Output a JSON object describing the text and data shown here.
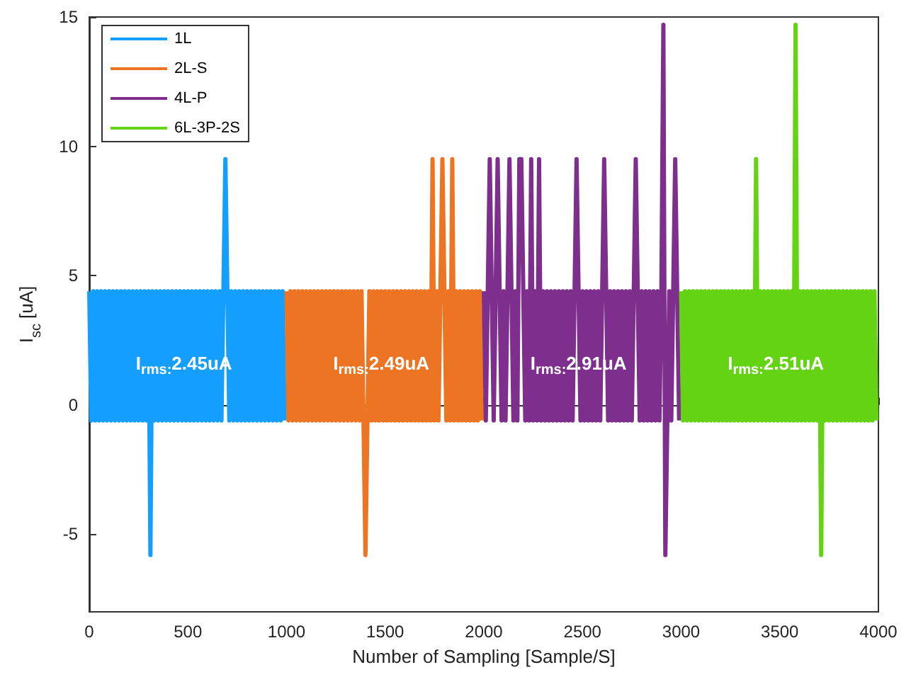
{
  "chart_data": {
    "type": "line",
    "xlabel": "Number of Sampling [Sample/S]",
    "ylabel": "I$_{sc}$ [uA]",
    "xlim": [
      0,
      4000
    ],
    "xticks": [
      0,
      500,
      1000,
      1500,
      2000,
      2500,
      3000,
      3500,
      4000
    ],
    "ylim": [
      -8,
      15
    ],
    "yticks": [
      -5,
      0,
      5,
      10,
      15
    ],
    "legend": "top left",
    "marker": "none",
    "line_style": "solid",
    "annotations": [
      {
        "text": "I$_{rms:}$2.45uA",
        "x": 480,
        "y": 1.6
      },
      {
        "text": "I$_{rms:}$2.49uA",
        "x": 1480,
        "y": 1.6
      },
      {
        "text": "I$_{rms:}$2.91uA",
        "x": 2480,
        "y": 1.6
      },
      {
        "text": "I$_{rms:}$2.51uA",
        "x": 3480,
        "y": 1.6
      }
    ],
    "series": [
      {
        "name": "1L",
        "color": "#149ffe",
        "x": [
          0,
          10,
          20,
          30,
          40,
          50,
          60,
          70,
          80,
          90,
          100,
          110,
          120,
          130,
          140,
          150,
          160,
          170,
          180,
          190,
          200,
          210,
          220,
          230,
          240,
          250,
          260,
          270,
          280,
          290,
          300,
          310,
          320,
          330,
          340,
          350,
          360,
          370,
          380,
          390,
          400,
          410,
          420,
          430,
          440,
          450,
          460,
          470,
          480,
          490,
          500,
          510,
          520,
          530,
          540,
          550,
          560,
          570,
          580,
          590,
          600,
          610,
          620,
          630,
          640,
          650,
          660,
          670,
          680,
          690,
          700,
          710,
          720,
          730,
          740,
          750,
          760,
          770,
          780,
          790,
          800,
          810,
          820,
          830,
          840,
          850,
          860,
          870,
          880,
          890,
          900,
          910,
          920,
          930,
          940,
          950,
          960,
          970,
          980,
          990
        ],
        "values": [
          4.4,
          -0.6,
          4.4,
          -0.6,
          4.4,
          -0.6,
          4.4,
          -0.6,
          4.4,
          -0.6,
          4.4,
          -0.6,
          4.4,
          -0.6,
          4.4,
          -0.6,
          4.4,
          -0.6,
          4.4,
          -0.6,
          4.4,
          -0.6,
          4.4,
          -0.6,
          4.4,
          -0.6,
          4.4,
          -0.6,
          4.4,
          -0.6,
          4.4,
          -5.8,
          4.4,
          -0.6,
          4.4,
          -0.6,
          4.4,
          -0.6,
          4.4,
          -0.6,
          4.4,
          -0.6,
          4.4,
          -0.6,
          4.4,
          -0.6,
          4.4,
          -0.6,
          4.4,
          -0.6,
          4.4,
          -0.6,
          4.4,
          -0.6,
          4.4,
          -0.6,
          4.4,
          -0.6,
          4.4,
          -0.6,
          4.4,
          -0.6,
          4.4,
          -0.6,
          4.4,
          -0.6,
          4.4,
          -0.6,
          4.4,
          9.5,
          4.4,
          -0.6,
          4.4,
          -0.6,
          4.4,
          -0.6,
          4.4,
          -0.6,
          4.4,
          -0.6,
          4.4,
          -0.6,
          4.4,
          -0.6,
          4.4,
          -0.6,
          4.4,
          -0.6,
          4.4,
          -0.6,
          4.4,
          -0.6,
          4.4,
          -0.6,
          4.4,
          -0.6,
          4.4,
          -0.6,
          4.4,
          -0.6
        ]
      },
      {
        "name": "2L-S",
        "color": "#ec7422",
        "x": [
          1000,
          1010,
          1020,
          1030,
          1040,
          1050,
          1060,
          1070,
          1080,
          1090,
          1100,
          1110,
          1120,
          1130,
          1140,
          1150,
          1160,
          1170,
          1180,
          1190,
          1200,
          1210,
          1220,
          1230,
          1240,
          1250,
          1260,
          1270,
          1280,
          1290,
          1300,
          1310,
          1320,
          1330,
          1340,
          1350,
          1360,
          1370,
          1380,
          1390,
          1400,
          1410,
          1420,
          1430,
          1440,
          1450,
          1460,
          1470,
          1480,
          1490,
          1500,
          1510,
          1520,
          1530,
          1540,
          1550,
          1560,
          1570,
          1580,
          1590,
          1600,
          1610,
          1620,
          1630,
          1640,
          1650,
          1660,
          1670,
          1680,
          1690,
          1700,
          1710,
          1720,
          1730,
          1740,
          1750,
          1760,
          1770,
          1780,
          1790,
          1800,
          1810,
          1820,
          1830,
          1840,
          1850,
          1860,
          1870,
          1880,
          1890,
          1900,
          1910,
          1920,
          1930,
          1940,
          1950,
          1960,
          1970,
          1980,
          1990
        ],
        "values": [
          4.4,
          -0.6,
          4.4,
          -0.6,
          4.4,
          -0.6,
          4.4,
          -0.6,
          4.4,
          -0.6,
          4.4,
          -0.6,
          4.4,
          -0.6,
          4.4,
          -0.6,
          4.4,
          -0.6,
          4.4,
          -0.6,
          4.4,
          -0.6,
          4.4,
          -0.6,
          4.4,
          -0.6,
          4.4,
          -0.6,
          4.4,
          -0.6,
          4.4,
          -0.6,
          4.4,
          -0.6,
          4.4,
          -0.6,
          4.4,
          -0.6,
          4.4,
          -0.6,
          -5.8,
          -0.6,
          4.4,
          -0.6,
          4.4,
          -0.6,
          4.4,
          -0.6,
          4.4,
          -0.6,
          4.4,
          -0.6,
          4.4,
          -0.6,
          4.4,
          -0.6,
          4.4,
          -0.6,
          4.4,
          -0.6,
          4.4,
          -0.6,
          4.4,
          -0.6,
          4.4,
          -0.6,
          4.4,
          -0.6,
          4.4,
          -0.6,
          4.4,
          -0.6,
          4.4,
          -0.6,
          9.5,
          -0.6,
          4.4,
          -0.6,
          4.4,
          9.5,
          4.4,
          -0.6,
          4.4,
          -0.6,
          9.5,
          -0.6,
          4.4,
          -0.6,
          4.4,
          -0.6,
          4.4,
          -0.6,
          4.4,
          -0.6,
          4.4,
          -0.6,
          4.4,
          -0.6,
          4.4,
          -0.6
        ]
      },
      {
        "name": "4L-P",
        "color": "#7e2f8e",
        "x": [
          2000,
          2010,
          2020,
          2030,
          2040,
          2050,
          2060,
          2070,
          2080,
          2090,
          2100,
          2110,
          2120,
          2130,
          2140,
          2150,
          2160,
          2170,
          2180,
          2190,
          2200,
          2210,
          2220,
          2230,
          2240,
          2250,
          2260,
          2270,
          2280,
          2290,
          2300,
          2310,
          2320,
          2330,
          2340,
          2350,
          2360,
          2370,
          2380,
          2390,
          2400,
          2410,
          2420,
          2430,
          2440,
          2450,
          2460,
          2470,
          2480,
          2490,
          2500,
          2510,
          2520,
          2530,
          2540,
          2550,
          2560,
          2570,
          2580,
          2590,
          2600,
          2610,
          2620,
          2630,
          2640,
          2650,
          2660,
          2670,
          2680,
          2690,
          2700,
          2710,
          2720,
          2730,
          2740,
          2750,
          2760,
          2770,
          2780,
          2790,
          2800,
          2810,
          2820,
          2830,
          2840,
          2850,
          2860,
          2870,
          2880,
          2890,
          2900,
          2910,
          2920,
          2930,
          2940,
          2950,
          2960,
          2970,
          2980,
          2990
        ],
        "values": [
          4.4,
          -0.6,
          4.4,
          9.5,
          4.4,
          -0.6,
          4.4,
          9.5,
          4.4,
          -0.6,
          4.4,
          -0.6,
          4.4,
          9.5,
          4.4,
          -0.6,
          4.4,
          -0.6,
          9.5,
          9.5,
          4.4,
          -0.6,
          4.4,
          -0.6,
          9.5,
          -0.6,
          4.4,
          -0.6,
          9.5,
          -0.6,
          4.4,
          -0.6,
          4.4,
          -0.6,
          4.4,
          -0.6,
          4.4,
          -0.6,
          4.4,
          -0.6,
          4.4,
          -0.6,
          4.4,
          -0.6,
          4.4,
          -0.6,
          4.4,
          9.5,
          4.4,
          -0.6,
          4.4,
          -0.6,
          4.4,
          -0.6,
          4.4,
          -0.6,
          4.4,
          -0.6,
          4.4,
          -0.6,
          4.4,
          9.5,
          4.4,
          -0.6,
          4.4,
          -0.6,
          4.4,
          -0.6,
          4.4,
          -0.6,
          4.4,
          -0.6,
          4.4,
          -0.6,
          4.4,
          -0.6,
          4.4,
          9.5,
          4.4,
          -0.6,
          4.4,
          -0.6,
          4.4,
          -0.6,
          4.4,
          -0.6,
          4.4,
          -0.6,
          4.4,
          -0.6,
          4.4,
          14.7,
          -5.8,
          -0.6,
          4.4,
          -0.6,
          4.4,
          9.5,
          4.4,
          -0.6
        ]
      },
      {
        "name": "6L-3P-2S",
        "color": "#63d314",
        "x": [
          3000,
          3010,
          3020,
          3030,
          3040,
          3050,
          3060,
          3070,
          3080,
          3090,
          3100,
          3110,
          3120,
          3130,
          3140,
          3150,
          3160,
          3170,
          3180,
          3190,
          3200,
          3210,
          3220,
          3230,
          3240,
          3250,
          3260,
          3270,
          3280,
          3290,
          3300,
          3310,
          3320,
          3330,
          3340,
          3350,
          3360,
          3370,
          3380,
          3390,
          3400,
          3410,
          3420,
          3430,
          3440,
          3450,
          3460,
          3470,
          3480,
          3490,
          3500,
          3510,
          3520,
          3530,
          3540,
          3550,
          3560,
          3570,
          3580,
          3590,
          3600,
          3610,
          3620,
          3630,
          3640,
          3650,
          3660,
          3670,
          3680,
          3690,
          3700,
          3710,
          3720,
          3730,
          3740,
          3750,
          3760,
          3770,
          3780,
          3790,
          3800,
          3810,
          3820,
          3830,
          3840,
          3850,
          3860,
          3870,
          3880,
          3890,
          3900,
          3910,
          3920,
          3930,
          3940,
          3950,
          3960,
          3970,
          3980,
          3990
        ],
        "values": [
          4.4,
          -0.6,
          4.4,
          -0.6,
          4.4,
          -0.6,
          4.4,
          -0.6,
          4.4,
          -0.6,
          4.4,
          -0.6,
          4.4,
          -0.6,
          4.4,
          -0.6,
          4.4,
          -0.6,
          4.4,
          -0.6,
          4.4,
          -0.6,
          4.4,
          -0.6,
          4.4,
          -0.6,
          4.4,
          -0.6,
          4.4,
          -0.6,
          4.4,
          -0.6,
          4.4,
          -0.6,
          4.4,
          -0.6,
          4.4,
          -0.6,
          9.5,
          -0.6,
          4.4,
          -0.6,
          4.4,
          -0.6,
          4.4,
          -0.6,
          4.4,
          -0.6,
          4.4,
          -0.6,
          4.4,
          -0.6,
          4.4,
          -0.6,
          4.4,
          -0.6,
          4.4,
          -0.6,
          14.7,
          -0.6,
          4.4,
          -0.6,
          4.4,
          -0.6,
          4.4,
          -0.6,
          4.4,
          -0.6,
          4.4,
          -0.6,
          4.4,
          -5.8,
          4.4,
          -0.6,
          4.4,
          -0.6,
          4.4,
          -0.6,
          4.4,
          -0.6,
          4.4,
          -0.6,
          4.4,
          -0.6,
          4.4,
          -0.6,
          4.4,
          -0.6,
          4.4,
          -0.6,
          4.4,
          -0.6,
          4.4,
          -0.6,
          4.4,
          -0.6,
          4.4,
          -0.6,
          4.4,
          -0.6
        ]
      }
    ]
  }
}
